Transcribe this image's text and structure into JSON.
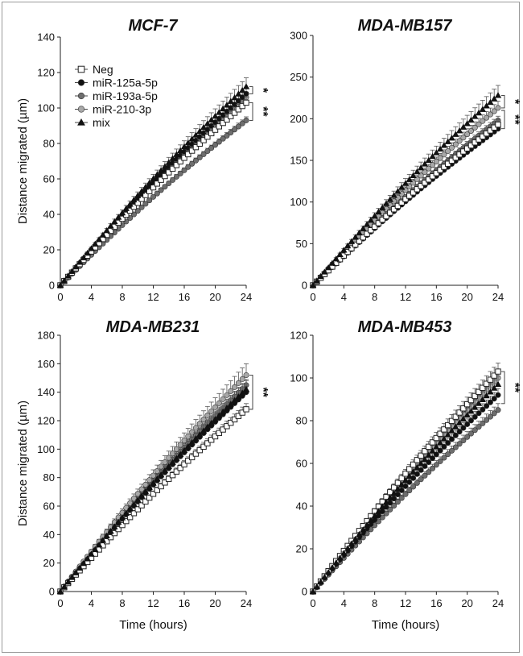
{
  "colors": {
    "Neg": "#ffffff",
    "miR-125a-5p": "#111111",
    "miR-193a-5p": "#6e6e6e",
    "miR-210-3p": "#a8a8a8",
    "mix": "#111111",
    "axis": "#222222"
  },
  "legend": {
    "items": [
      {
        "name": "Neg",
        "marker": "square-open"
      },
      {
        "name": "miR-125a-5p",
        "marker": "circle-black"
      },
      {
        "name": "miR-193a-5p",
        "marker": "circle-darkgray"
      },
      {
        "name": "miR-210-3p",
        "marker": "circle-lightgray"
      },
      {
        "name": "mix",
        "marker": "triangle-black"
      }
    ]
  },
  "shared_axes": {
    "ylabel": "Distance migrated (µm)",
    "xlabel": "Time (hours)"
  },
  "chart_data": [
    {
      "type": "line",
      "title": "MCF-7",
      "xlim": [
        0,
        24
      ],
      "xticks": [
        0,
        4,
        8,
        12,
        16,
        20,
        24
      ],
      "ylim": [
        0,
        140
      ],
      "yticks": [
        0,
        20,
        40,
        60,
        80,
        100,
        120,
        140
      ],
      "ylabel": "Distance migrated (µm)",
      "xlabel": "",
      "show_legend": true,
      "series": [
        {
          "name": "Neg",
          "end": 103,
          "err": 3
        },
        {
          "name": "miR-125a-5p",
          "end": 108,
          "err": 3
        },
        {
          "name": "miR-193a-5p",
          "end": 93,
          "err": 2
        },
        {
          "name": "miR-210-3p",
          "end": 106,
          "err": 3
        },
        {
          "name": "mix",
          "end": 112,
          "err": 5
        }
      ],
      "significance": [
        {
          "label": "*",
          "from": 108,
          "to": 112
        },
        {
          "label": "**",
          "from": 93,
          "to": 103
        }
      ]
    },
    {
      "type": "line",
      "title": "MDA-MB157",
      "xlim": [
        0,
        24
      ],
      "xticks": [
        0,
        4,
        8,
        12,
        16,
        20,
        24
      ],
      "ylim": [
        0,
        300
      ],
      "yticks": [
        0,
        50,
        100,
        150,
        200,
        250,
        300
      ],
      "ylabel": "",
      "xlabel": "",
      "show_legend": false,
      "series": [
        {
          "name": "Neg",
          "end": 193,
          "err": 6
        },
        {
          "name": "miR-125a-5p",
          "end": 188,
          "err": 5
        },
        {
          "name": "miR-193a-5p",
          "end": 198,
          "err": 5
        },
        {
          "name": "miR-210-3p",
          "end": 213,
          "err": 8
        },
        {
          "name": "mix",
          "end": 228,
          "err": 12
        }
      ],
      "significance": [
        {
          "label": "*",
          "from": 213,
          "to": 228
        },
        {
          "label": "**",
          "from": 188,
          "to": 210
        }
      ]
    },
    {
      "type": "line",
      "title": "MDA-MB231",
      "xlim": [
        0,
        24
      ],
      "xticks": [
        0,
        4,
        8,
        12,
        16,
        20,
        24
      ],
      "ylim": [
        0,
        180
      ],
      "yticks": [
        0,
        20,
        40,
        60,
        80,
        100,
        120,
        140,
        160,
        180
      ],
      "ylabel": "Distance migrated (µm)",
      "xlabel": "Time (hours)",
      "show_legend": false,
      "series": [
        {
          "name": "Neg",
          "end": 128,
          "err": 4
        },
        {
          "name": "miR-125a-5p",
          "end": 140,
          "err": 4
        },
        {
          "name": "miR-193a-5p",
          "end": 145,
          "err": 4
        },
        {
          "name": "miR-210-3p",
          "end": 152,
          "err": 8
        },
        {
          "name": "mix",
          "end": 142,
          "err": 6
        }
      ],
      "significance": [
        {
          "label": "**",
          "from": 128,
          "to": 152
        }
      ]
    },
    {
      "type": "line",
      "title": "MDA-MB453",
      "xlim": [
        0,
        24
      ],
      "xticks": [
        0,
        4,
        8,
        12,
        16,
        20,
        24
      ],
      "ylim": [
        0,
        120
      ],
      "yticks": [
        0,
        20,
        40,
        60,
        80,
        100,
        120
      ],
      "ylabel": "",
      "xlabel": "Time (hours)",
      "show_legend": false,
      "series": [
        {
          "name": "Neg",
          "end": 103,
          "err": 4
        },
        {
          "name": "miR-125a-5p",
          "end": 92,
          "err": 3
        },
        {
          "name": "miR-193a-5p",
          "end": 85,
          "err": 3
        },
        {
          "name": "miR-210-3p",
          "end": 100,
          "err": 3
        },
        {
          "name": "mix",
          "end": 97,
          "err": 4
        }
      ],
      "significance": [
        {
          "label": "**",
          "from": 88,
          "to": 103
        }
      ]
    }
  ]
}
